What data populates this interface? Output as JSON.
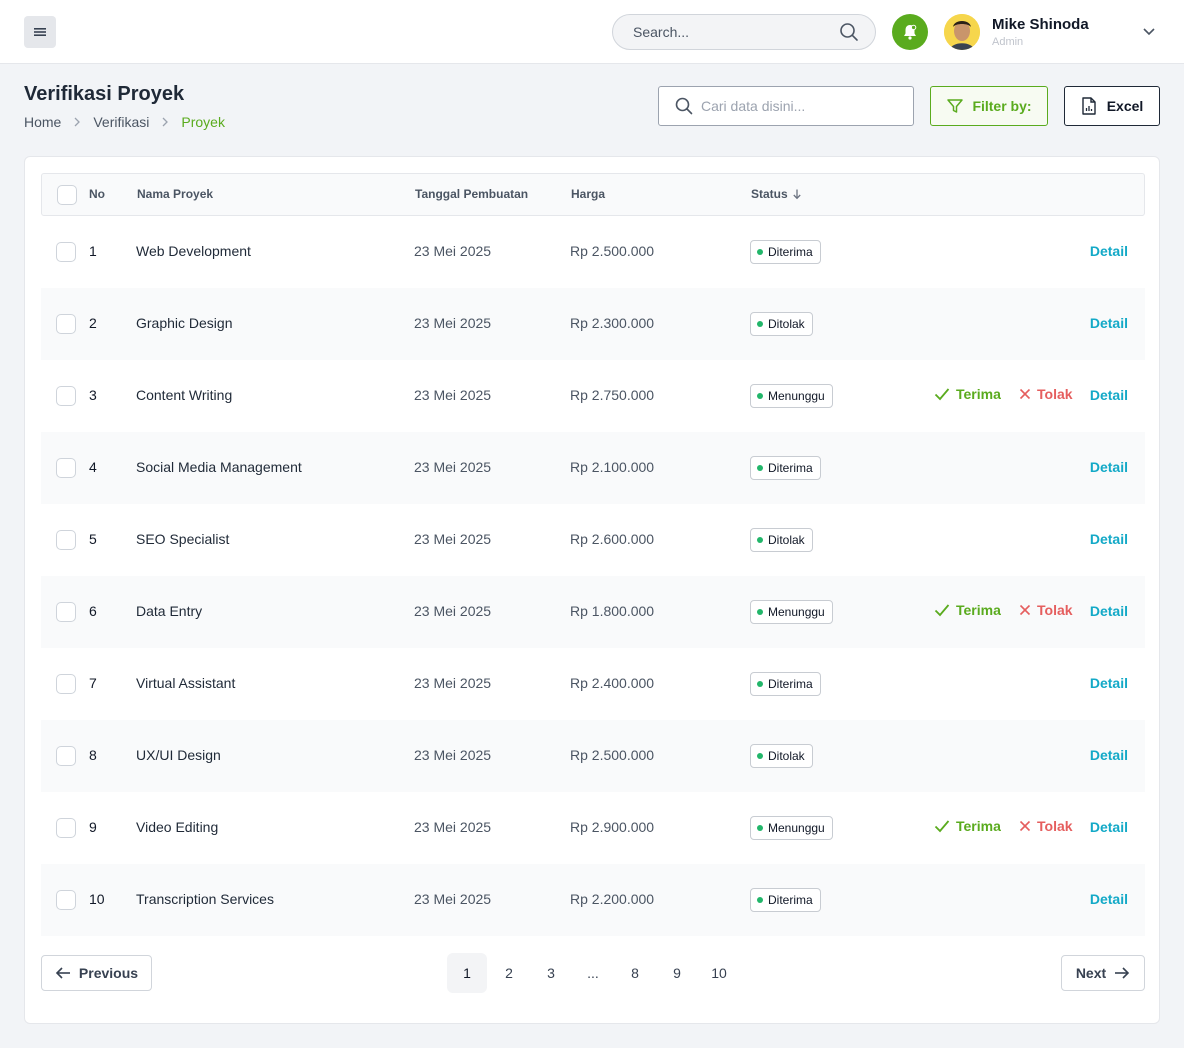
{
  "topbar": {
    "search_placeholder": "Search...",
    "user": {
      "name": "Mike Shinoda",
      "role": "Admin"
    }
  },
  "page": {
    "title": "Verifikasi Proyek",
    "breadcrumb": [
      "Home",
      "Verifikasi",
      "Proyek"
    ],
    "search_placeholder": "Cari data disini...",
    "filter_label": "Filter by:",
    "excel_label": "Excel"
  },
  "table": {
    "headers": {
      "no": "No",
      "name": "Nama Proyek",
      "date": "Tanggal Pembuatan",
      "price": "Harga",
      "status": "Status"
    },
    "rows": [
      {
        "no": "1",
        "name": "Web Development",
        "date": "23 Mei 2025",
        "price": "Rp 2.500.000",
        "status": "Diterima"
      },
      {
        "no": "2",
        "name": "Graphic Design",
        "date": "23 Mei 2025",
        "price": "Rp 2.300.000",
        "status": "Ditolak"
      },
      {
        "no": "3",
        "name": "Content Writing",
        "date": "23 Mei 2025",
        "price": "Rp 2.750.000",
        "status": "Menunggu"
      },
      {
        "no": "4",
        "name": "Social Media Management",
        "date": "23 Mei 2025",
        "price": "Rp 2.100.000",
        "status": "Diterima"
      },
      {
        "no": "5",
        "name": "SEO Specialist",
        "date": "23 Mei 2025",
        "price": "Rp 2.600.000",
        "status": "Ditolak"
      },
      {
        "no": "6",
        "name": "Data Entry",
        "date": "23 Mei 2025",
        "price": "Rp 1.800.000",
        "status": "Menunggu"
      },
      {
        "no": "7",
        "name": "Virtual Assistant",
        "date": "23 Mei 2025",
        "price": "Rp 2.400.000",
        "status": "Diterima"
      },
      {
        "no": "8",
        "name": "UX/UI Design",
        "date": "23 Mei 2025",
        "price": "Rp 2.500.000",
        "status": "Ditolak"
      },
      {
        "no": "9",
        "name": "Video Editing",
        "date": "23 Mei 2025",
        "price": "Rp 2.900.000",
        "status": "Menunggu"
      },
      {
        "no": "10",
        "name": "Transcription Services",
        "date": "23 Mei 2025",
        "price": "Rp 2.200.000",
        "status": "Diterima"
      }
    ],
    "actions": {
      "accept": "Terima",
      "reject": "Tolak",
      "detail": "Detail"
    }
  },
  "pagination": {
    "prev_label": "Previous",
    "next_label": "Next",
    "pages": [
      "1",
      "2",
      "3",
      "...",
      "8",
      "9",
      "10"
    ],
    "current": "1"
  },
  "colors": {
    "accent": "#5aab1e",
    "link": "#13a9c7",
    "danger": "#e55e5e",
    "status_dot": "#22b66a"
  },
  "icons": [
    "menu-icon",
    "search-icon",
    "bell-icon",
    "chevron-down-icon",
    "chevron-right-icon",
    "filter-icon",
    "file-icon",
    "sort-down-icon",
    "check-icon",
    "x-icon",
    "arrow-left-icon",
    "arrow-right-icon"
  ]
}
